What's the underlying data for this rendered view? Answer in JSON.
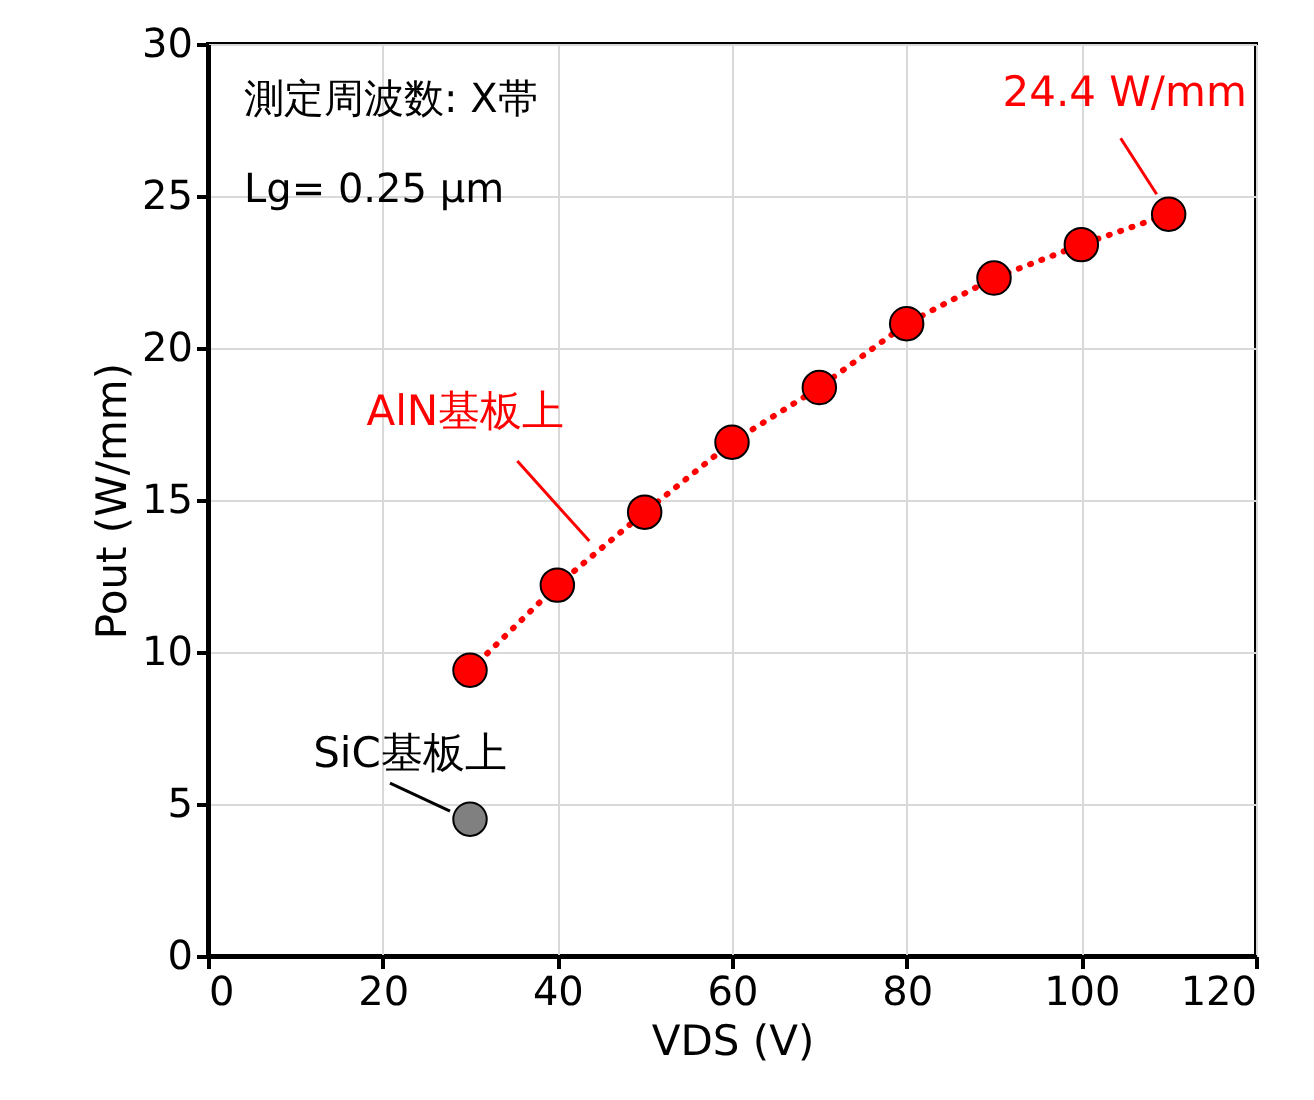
{
  "chart_data": {
    "type": "scatter",
    "xlabel": "VDS (V)",
    "ylabel": "Pout (W/mm)",
    "xlim": [
      0,
      120
    ],
    "xticks": [
      0,
      20,
      40,
      60,
      80,
      100,
      120
    ],
    "ylim": [
      0,
      30
    ],
    "yticks": [
      0,
      5,
      10,
      15,
      20,
      25,
      30
    ],
    "grid": true,
    "legend": false,
    "marker": "circle",
    "series": [
      {
        "name": "AlN基板上",
        "type": "line",
        "line_style": "dotted",
        "color": "#ff0000",
        "x": [
          30,
          40,
          50,
          60,
          70,
          80,
          90,
          100,
          110
        ],
        "values": [
          9.4,
          12.2,
          14.6,
          16.9,
          18.7,
          20.8,
          22.3,
          23.4,
          24.4
        ]
      },
      {
        "name": "SiC基板上",
        "color": "#808080",
        "x": [
          30
        ],
        "values": [
          4.5
        ]
      }
    ],
    "annotations": [
      "測定周波数: X帯",
      "Lg= 0.25 μm",
      {
        "text": "24.4 W/mm",
        "x": 110,
        "y": 24.4
      }
    ]
  }
}
